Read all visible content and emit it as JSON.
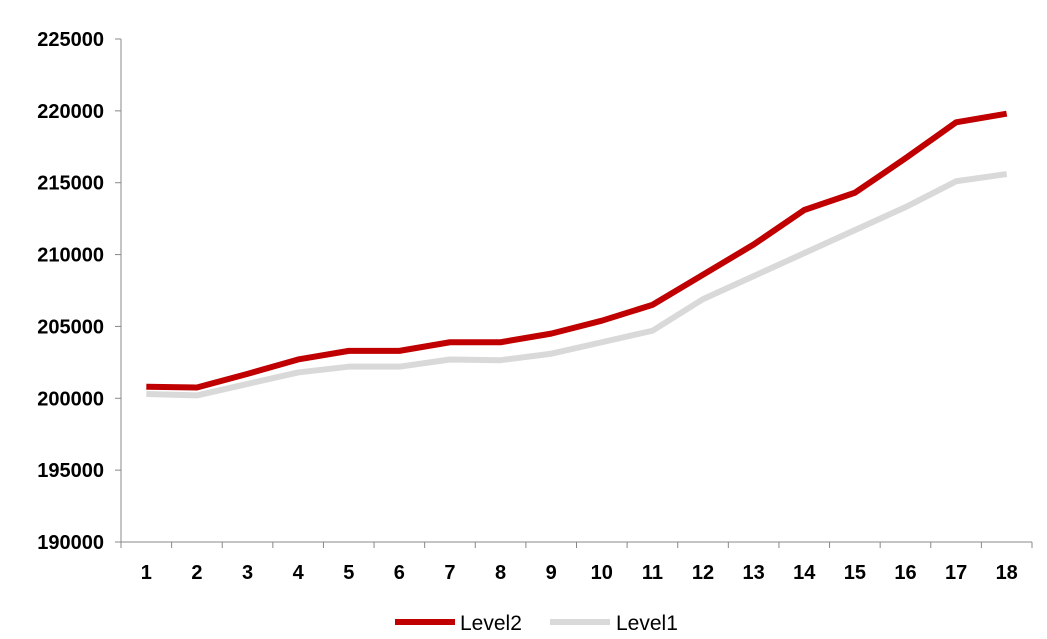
{
  "chart_data": {
    "type": "line",
    "title": "",
    "xlabel": "",
    "ylabel": "",
    "x": [
      1,
      2,
      3,
      4,
      5,
      6,
      7,
      8,
      9,
      10,
      11,
      12,
      13,
      14,
      15,
      16,
      17,
      18
    ],
    "x_tick_labels": [
      "1",
      "2",
      "3",
      "4",
      "5",
      "6",
      "7",
      "8",
      "9",
      "10",
      "11",
      "12",
      "13",
      "14",
      "15",
      "16",
      "17",
      "18"
    ],
    "ylim": [
      190000,
      225000
    ],
    "y_ticks": [
      190000,
      195000,
      200000,
      205000,
      210000,
      215000,
      220000,
      225000
    ],
    "y_tick_labels": [
      "190000",
      "195000",
      "200000",
      "205000",
      "210000",
      "215000",
      "220000",
      "225000"
    ],
    "grid": false,
    "legend_position": "bottom-center",
    "series": [
      {
        "name": "Level2",
        "color": "#c00000",
        "values": [
          200800,
          200750,
          201700,
          202700,
          203300,
          203300,
          203900,
          203900,
          204500,
          205400,
          206500,
          208600,
          210700,
          213100,
          214300,
          216700,
          219200,
          219800
        ]
      },
      {
        "name": "Level1",
        "color": "#d9d9d9",
        "values": [
          200300,
          200200,
          201000,
          201800,
          202200,
          202200,
          202700,
          202650,
          203100,
          203900,
          204700,
          206900,
          208500,
          210100,
          211700,
          213300,
          215100,
          215600
        ]
      }
    ]
  }
}
